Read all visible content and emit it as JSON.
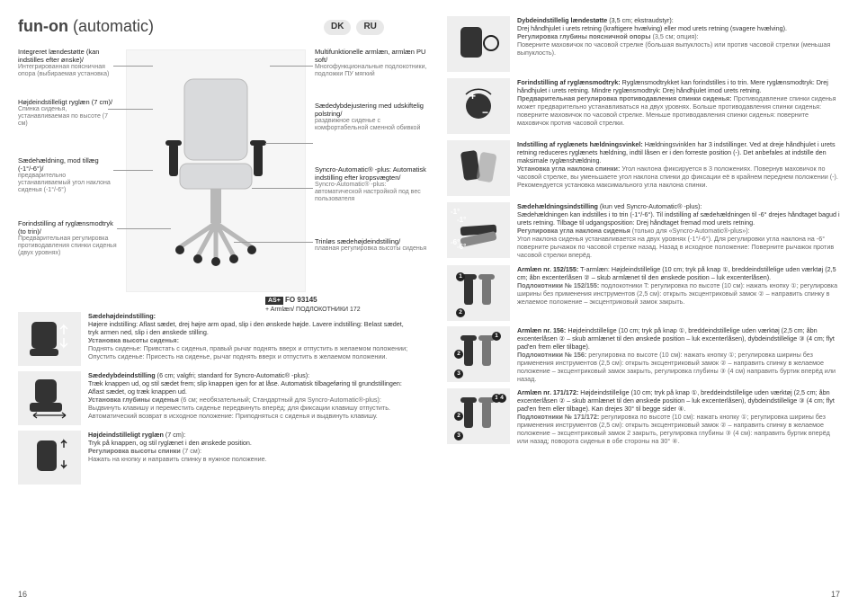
{
  "title_bold": "fun-on",
  "title_light": " (automatic)",
  "lang1": "DK",
  "lang2": "RU",
  "callouts_left": [
    {
      "dk": "Integreret lændestøtte (kan indstilles efter ønske)/",
      "ru": "Интегрированная поясничная опора (выбираемая установка)"
    },
    {
      "dk": "Højdeindstilleligt ryglæn (7 cm)/",
      "ru": "Спинка сиденья, устанавливаемая по высоте (7 см)"
    },
    {
      "dk": "Sædehældning, mod tillæg (-1°/-6°)/",
      "ru": "предварительно устанавливаемый угол наклона сиденья (-1°/-6°)"
    },
    {
      "dk": "Forindstilling af ryglænsmodtryk (to trin)/",
      "ru": "Предварительная регулировка противодавления спинки сиденья (двух уровнях)"
    }
  ],
  "callouts_right": [
    {
      "dk": "Multifunktionelle armlæn, armlæn PU soft/",
      "ru": "Многофункциональные подлокотники, подложки ПУ мягкий"
    },
    {
      "dk": "Sædedybdejustering med udskiftelig polstring/",
      "ru": "раздвижное сиденье с комфортабельной сменной обивкой"
    },
    {
      "dk": "Syncro-Automatic® -plus: Automatisk indstilling efter kropsvægten/",
      "ru": "Syncro-Automatic® -plus: автоматической настройкой под вес пользователя"
    },
    {
      "dk": "Trinløs sædehøjdeindstilling/",
      "ru": "плавная регулировка высоты сиденья"
    }
  ],
  "asplus_code": "FO 93145",
  "asplus_sub": "+ Armlæn/ ПОДЛОКОТНИКИ 172",
  "left_rows": [
    {
      "h_dk": "Sædehøjdeindstilling:",
      "b_dk": "Højere indstilling: Aflast sædet, drej højre arm opad, slip i den ønskede højde. Lavere indstilling: Belast sædet, tryk armen ned, slip i den ønskede stilling.",
      "h_ru": "Установка высоты сиденья:",
      "b_ru": "Поднять сиденье: Привстать с сиденья, правый рычаг поднять вверх и отпустить в желаемом положении; Опустить сиденье: Присесть на сиденье, рычаг поднять вверх и отпустить в желаемом положении."
    },
    {
      "h_dk": "Sædedybdeindstilling",
      "p_dk": " (6 cm; valgfri; standard for Syncro-Automatic® -plus):",
      "b_dk": "Træk knappen ud, og stil sædet frem; slip knappen igen for at låse. Automatisk tilbageføring til grundstillingen: Aflast sædet, og træk knappen ud.",
      "h_ru": "Установка глубины сиденья",
      "p_ru": " (6 см; необязательный; Стандартный для Syncro-Automatic®-plus): ",
      "b_ru": "Выдвинуть клавишу и переместить сиденье передвинуть вперёд; для фиксации клавишу отпустить. Автоматический возврат в исходное положение: Приподняться с сиденья и выдвинуть клавишу."
    },
    {
      "h_dk": "Højdeindstilleligt ryglæn",
      "p_dk": " (7 cm):",
      "b_dk": "Tryk på knappen, og stil ryglænet i den ønskede position.",
      "h_ru": "Регулировка высоты спинки",
      "p_ru": " (7 см):",
      "b_ru": "Нажать на кнопку и направить спинку в нужное положение."
    }
  ],
  "right_intro": [
    {
      "h_dk": "Dybdeindstillelig lændestøtte",
      "p_dk": " (3,5 cm; ekstraudstyr):",
      "b_dk": "Drej håndhjulet i urets retning (kraftigere hvælving) eller mod urets retning (svagere hvælving).",
      "h_ru": "Регулировка глубины поясничной опоры",
      "p_ru": " (3,5 см; опция):",
      "b_ru": "Поверните маховичок по часовой стрелке (большая выпуклость) или против часовой стрелки (меньшая выпуклость)."
    },
    {
      "h_dk": "Forindstilling af ryglænsmodtryk:",
      "b_dk": " Ryglænsmodtrykket kan forindstilles i to trin. Mere ryglænsmodtryk: Drej håndhjulet i urets retning. Mindre ryglænsmodtryk: Drej håndhjulet imod urets retning.",
      "h_ru": "Предварительная регулировка противодавления спинки сиденья:",
      "b_ru": " Противодавление спинки сиденья может предварительно устанавливаться на двух уровнях. Больше противодавления спинки сиденья: поверните маховичок по часовой стрелке. Меньше противодавления спинки сиденья: поверните маховичок против часовой стрелки."
    },
    {
      "h_dk": "Indstilling af ryglænets hældningsvinkel:",
      "b_dk": " Hældningsvinklen har 3 indstillinger. Ved at dreje håndhjulet i urets retning reduceres ryglænets hældning, indtil låsen er i den forreste position (-). Det anbefales at indstille den maksimale ryglænshældning.",
      "h_ru": "Установка угла наклона спинки:",
      "b_ru": " Угол наклона фиксируется в 3 положениях. Повернув маховичок по часовой стрелке, вы уменьшаете угол наклона спинки до фиксации её в крайнем переднем положении (-). Рекомендуется установка максимального угла наклона спинки."
    },
    {
      "h_dk": "Sædehældningsindstilling",
      "p_dk": " (kun ved Syncro-Automatic® -plus):",
      "b_dk": "Sædehældningen kan indstilles i to trin (-1°/-6°). Til indstilling af sædehældningen til -6° drejes håndtaget bagud i urets retning. Tilbage til udgangsposition: Drej håndtaget fremad mod urets retning.",
      "h_ru": "Регулировка угла наклона сиденья",
      "p_ru": " (только для «Syncro-Automatic®-plus»):",
      "b_ru": "Угол наклона сиденья устанавливается на двух уровнях (-1°/-6°). Для регулировки угла наклона на -6° поверните рычажок по часовой стрелке назад. Назад в исходное положение: Поверните рычажок против часовой стрелки вперёд."
    }
  ],
  "right_rows": [
    {
      "h_dk": "Armlæn nr. 152/155:",
      "b_dk": " T-armlæn: Højdeindstillelige (10 cm; tryk på knap ①, breddeindstillelige uden værktøj (2,5 cm; åbn excenterlåsen ② – skub armlænet til den ønskede position – luk excenterlåsen).",
      "h_ru": "Подлокотники № 152/155:",
      "b_ru": " подлокотники T: регулировка по высоте (10 см): нажать кнопку ①; регулировка ширины без применения инструментов (2,5 см): открыть эксцентриковый замок ② – направить спинку в желаемое положение – эксцентриковый замок закрыть.",
      "nums": [
        [
          10,
          8
        ],
        [
          10,
          48
        ]
      ]
    },
    {
      "h_dk": "Armlæn nr. 156:",
      "b_dk": " Højdeindstillelige (10 cm; tryk på knap ①, breddeindstillelige uden værktøj (2,5 cm; åbn excenterlåsen ② – skub armlænet til den ønskede position – luk excenterlåsen), dybdeindstillelige ③ (4 cm; flyt pad'en frem eller tilbage).",
      "h_ru": "Подлокотники № 156:",
      "b_ru": " регулировка по высоте (10 см): нажать кнопку ①; регулировка ширины без применения инструментов (2,5 см): открыть эксцентриковый замок ② – направить спинку в желаемое положение – эксцентриковый замок закрыть, регулировка глубины ③ (4 см) направить буртик вперёд или назад.",
      "nums": [
        [
          50,
          6
        ],
        [
          8,
          26
        ],
        [
          8,
          48
        ]
      ]
    },
    {
      "h_dk": "Armlæn nr. 171/172:",
      "b_dk": " Højdeindstillelige (10 cm; tryk på knap ①, breddeindstillelige uden værktøj (2,5 cm; åbn excenterlåsen ② – skub armlænet til den ønskede position – luk excenterlåsen), dybdeindstillelige ③ (4 cm; flyt pad'en frem eller tilbage). Kan drejes 30° til begge sider ④.",
      "h_ru": "Подлокотники № 171/172:",
      "b_ru": " регулировка по высоте (10 см): нажать кнопку ①; регулировка ширины без применения инструментов (2,5 см): открыть эксцентриковый замок ② – направить спинку в желаемое положение – эксцентриковый замок 2 закрыть, регулировка глубины ③ (4 см): направить буртик вперёд или назад; поворота сиденья в обе стороны на 30° ④.",
      "nums": [
        [
          50,
          6
        ],
        [
          8,
          26
        ],
        [
          8,
          48
        ],
        [
          56,
          6
        ]
      ]
    }
  ],
  "page_left": "16",
  "page_right": "17",
  "colors": {
    "chair_fill": "#d9dadc",
    "chair_dark": "#2b2b2b",
    "metal": "#b8b8b8",
    "thumb_bg": "#e9e9e9"
  }
}
